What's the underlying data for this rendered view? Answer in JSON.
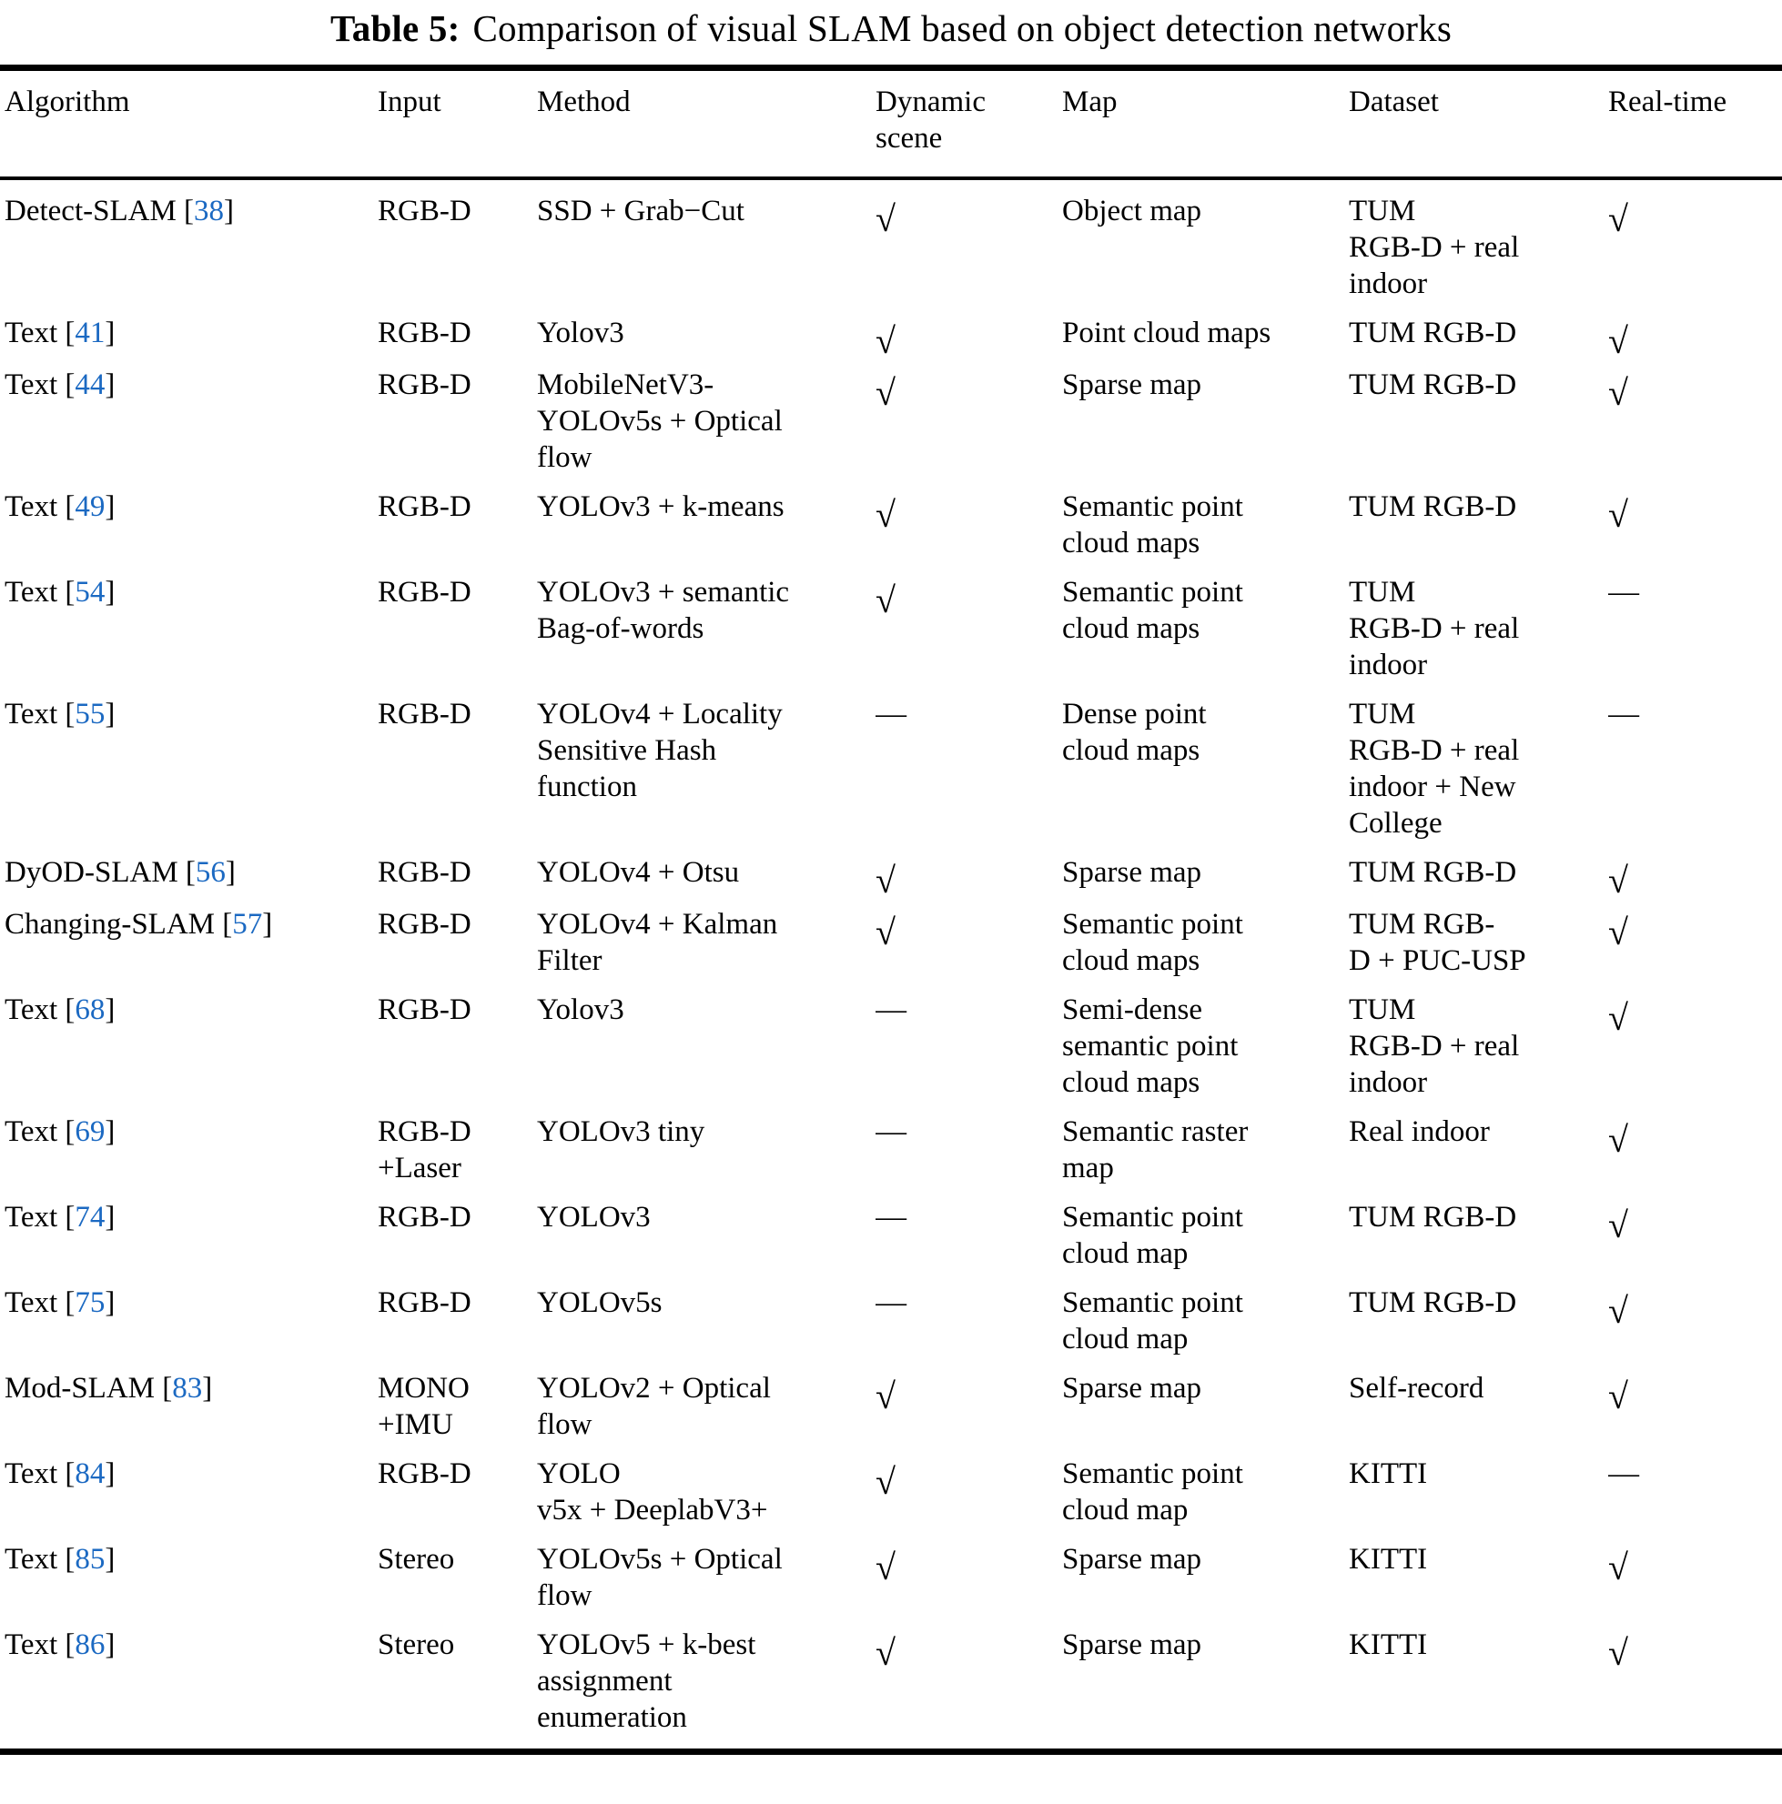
{
  "page": {
    "background": "#ffffff"
  },
  "title": {
    "label": "Table 5:",
    "text": "Comparison of visual SLAM based on object detection networks"
  },
  "colors": {
    "citation": "#1b69c2",
    "text": "#000000",
    "rule": "#000000"
  },
  "symbols": {
    "bracket_open": "[",
    "bracket_close": "]",
    "check": "√",
    "dash": "—"
  },
  "table": {
    "columns": [
      "Algorithm",
      "Input",
      "Method",
      "Dynamic\nscene",
      "Map",
      "Dataset",
      "Real-time"
    ],
    "rows": [
      {
        "algorithm": "Detect-SLAM",
        "ref": "38",
        "input": "RGB-D",
        "method": "SSD + Grab−Cut",
        "dynamic_scene": "√",
        "map": "Object map",
        "dataset": "TUM\nRGB-D + real\nindoor",
        "real_time": "√"
      },
      {
        "algorithm": "Text",
        "ref": "41",
        "input": "RGB-D",
        "method": "Yolov3",
        "dynamic_scene": "√",
        "map": "Point cloud maps",
        "dataset": "TUM RGB-D",
        "real_time": "√"
      },
      {
        "algorithm": "Text",
        "ref": "44",
        "input": "RGB-D",
        "method": "MobileNetV3-\nYOLOv5s + Optical\nflow",
        "dynamic_scene": "√",
        "map": "Sparse map",
        "dataset": "TUM RGB-D",
        "real_time": "√"
      },
      {
        "algorithm": "Text",
        "ref": "49",
        "input": "RGB-D",
        "method": "YOLOv3 + k-means",
        "dynamic_scene": "√",
        "map": "Semantic point\ncloud maps",
        "dataset": "TUM RGB-D",
        "real_time": "√"
      },
      {
        "algorithm": "Text",
        "ref": "54",
        "input": "RGB-D",
        "method": "YOLOv3 + semantic\nBag-of-words",
        "dynamic_scene": "√",
        "map": "Semantic point\ncloud maps",
        "dataset": "TUM\nRGB-D + real\nindoor",
        "real_time": "—"
      },
      {
        "algorithm": "Text",
        "ref": "55",
        "input": "RGB-D",
        "method": "YOLOv4 + Locality\nSensitive Hash\nfunction",
        "dynamic_scene": "—",
        "map": "Dense point\ncloud maps",
        "dataset": "TUM\nRGB-D + real\nindoor + New\nCollege",
        "real_time": "—"
      },
      {
        "algorithm": "DyOD-SLAM",
        "ref": "56",
        "input": "RGB-D",
        "method": "YOLOv4 + Otsu",
        "dynamic_scene": "√",
        "map": "Sparse map",
        "dataset": "TUM RGB-D",
        "real_time": "√"
      },
      {
        "algorithm": "Changing-SLAM",
        "ref": "57",
        "input": "RGB-D",
        "method": "YOLOv4 + Kalman\nFilter",
        "dynamic_scene": "√",
        "map": "Semantic point\ncloud maps",
        "dataset": "TUM RGB-\nD + PUC-USP",
        "real_time": "√"
      },
      {
        "algorithm": "Text",
        "ref": "68",
        "input": "RGB-D",
        "method": "Yolov3",
        "dynamic_scene": "—",
        "map": "Semi-dense\nsemantic point\ncloud maps",
        "dataset": "TUM\nRGB-D + real\nindoor",
        "real_time": "√"
      },
      {
        "algorithm": "Text",
        "ref": "69",
        "input": "RGB-D\n+Laser",
        "method": "YOLOv3 tiny",
        "dynamic_scene": "—",
        "map": "Semantic raster\nmap",
        "dataset": "Real indoor",
        "real_time": "√"
      },
      {
        "algorithm": "Text",
        "ref": "74",
        "input": "RGB-D",
        "method": "YOLOv3",
        "dynamic_scene": "—",
        "map": "Semantic point\ncloud map",
        "dataset": "TUM RGB-D",
        "real_time": "√"
      },
      {
        "algorithm": "Text",
        "ref": "75",
        "input": "RGB-D",
        "method": "YOLOv5s",
        "dynamic_scene": "—",
        "map": "Semantic point\ncloud map",
        "dataset": "TUM RGB-D",
        "real_time": "√"
      },
      {
        "algorithm": "Mod-SLAM",
        "ref": "83",
        "input": "MONO\n+IMU",
        "method": "YOLOv2 + Optical\nflow",
        "dynamic_scene": "√",
        "map": "Sparse map",
        "dataset": "Self-record",
        "real_time": "√"
      },
      {
        "algorithm": "Text",
        "ref": "84",
        "input": "RGB-D",
        "method": "YOLO\nv5x + DeeplabV3+",
        "dynamic_scene": "√",
        "map": "Semantic point\ncloud map",
        "dataset": "KITTI",
        "real_time": "—"
      },
      {
        "algorithm": "Text",
        "ref": "85",
        "input": "Stereo",
        "method": "YOLOv5s + Optical\nflow",
        "dynamic_scene": "√",
        "map": "Sparse map",
        "dataset": "KITTI",
        "real_time": "√"
      },
      {
        "algorithm": "Text",
        "ref": "86",
        "input": "Stereo",
        "method": "YOLOv5 + k-best\nassignment\nenumeration",
        "dynamic_scene": "√",
        "map": "Sparse map",
        "dataset": "KITTI",
        "real_time": "√"
      }
    ]
  }
}
